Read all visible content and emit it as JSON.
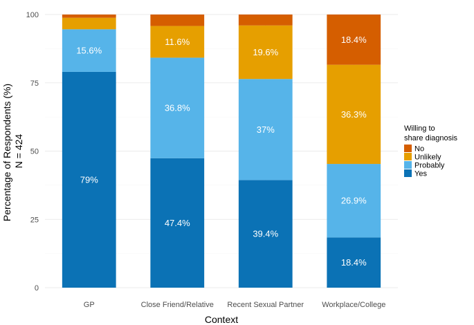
{
  "chart_data": {
    "type": "bar",
    "stacked": true,
    "categories": [
      "GP",
      "Close Friend/Relative",
      "Recent Sexual Partner",
      "Workplace/College"
    ],
    "series": [
      {
        "name": "Yes",
        "color": "#0b72b5",
        "values": [
          79.0,
          47.4,
          39.4,
          18.4
        ],
        "labels": [
          "79%",
          "47.4%",
          "39.4%",
          "18.4%"
        ]
      },
      {
        "name": "Probably",
        "color": "#56b4e9",
        "values": [
          15.6,
          36.8,
          37.0,
          26.9
        ],
        "labels": [
          "15.6%",
          "36.8%",
          "37%",
          "26.9%"
        ]
      },
      {
        "name": "Unlikely",
        "color": "#e69f00",
        "values": [
          4.2,
          11.6,
          19.6,
          36.3
        ],
        "labels": [
          "",
          "11.6%",
          "19.6%",
          "36.3%"
        ]
      },
      {
        "name": "No",
        "color": "#d55e00",
        "values": [
          1.2,
          4.2,
          4.0,
          18.4
        ],
        "labels": [
          "",
          "",
          "",
          "18.4%"
        ]
      }
    ],
    "xlabel": "Context",
    "ylabel_lines": [
      "Percentage of Respondents (%)",
      "N = 424"
    ],
    "ylim": [
      0,
      100
    ],
    "yticks": [
      0,
      25,
      50,
      75,
      100
    ],
    "grid": true,
    "legend": {
      "title_lines": [
        "Willing to",
        "share diagnosis"
      ],
      "placement": "right",
      "order": [
        "No",
        "Unlikely",
        "Probably",
        "Yes"
      ]
    }
  }
}
